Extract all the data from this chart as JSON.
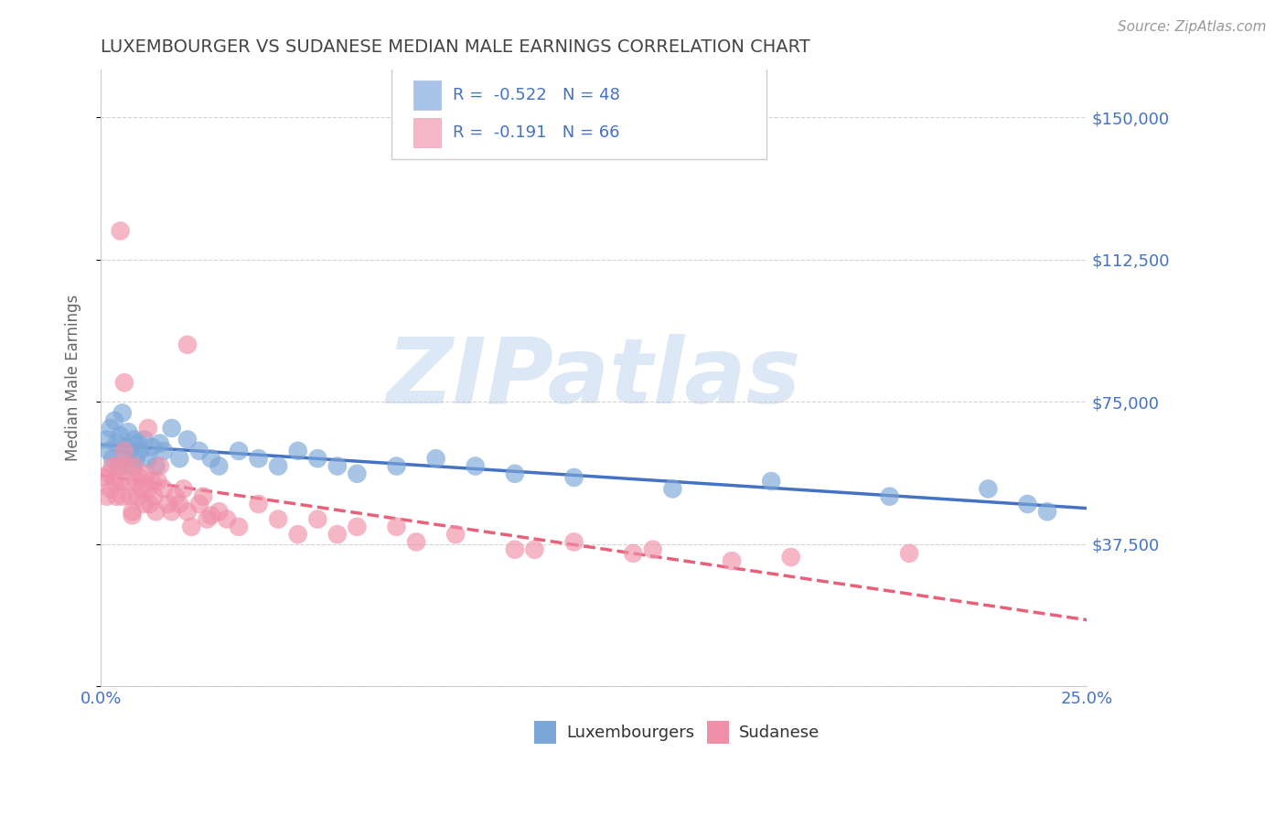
{
  "title": "LUXEMBOURGER VS SUDANESE MEDIAN MALE EARNINGS CORRELATION CHART",
  "source_text": "Source: ZipAtlas.com",
  "ylabel": "Median Male Earnings",
  "xlim": [
    0.0,
    25.0
  ],
  "ylim": [
    0,
    162500
  ],
  "yticks": [
    0,
    37500,
    75000,
    112500,
    150000
  ],
  "ytick_labels": [
    "",
    "$37,500",
    "$75,000",
    "$112,500",
    "$150,000"
  ],
  "background_color": "#ffffff",
  "grid_color": "#c8c8c8",
  "title_color": "#444444",
  "axis_label_color": "#4472c4",
  "watermark_text": "ZIPatlas",
  "watermark_color": "#dce8f5",
  "legend_r_label1": "R =  -0.522   N = 48",
  "legend_r_label2": "R =  -0.191   N = 66",
  "legend_sq_color1": "#a8c4e8",
  "legend_sq_color2": "#f4b8c8",
  "legend_text_color": "#4472c4",
  "scatter_color1": "#7ba7d8",
  "scatter_color2": "#f090a8",
  "line_color1": "#4472c4",
  "line_color2": "#e8607a",
  "lux_x": [
    0.15,
    0.2,
    0.25,
    0.3,
    0.35,
    0.4,
    0.45,
    0.5,
    0.55,
    0.6,
    0.65,
    0.7,
    0.75,
    0.8,
    0.85,
    0.9,
    0.95,
    1.0,
    1.1,
    1.2,
    1.3,
    1.4,
    1.5,
    1.6,
    1.8,
    2.0,
    2.2,
    2.5,
    2.8,
    3.0,
    3.5,
    4.0,
    4.5,
    5.0,
    5.5,
    6.0,
    6.5,
    7.5,
    8.5,
    9.5,
    10.5,
    12.0,
    14.5,
    17.0,
    20.0,
    22.5,
    23.5,
    24.0
  ],
  "lux_y": [
    65000,
    62000,
    68000,
    60000,
    70000,
    64000,
    58000,
    66000,
    72000,
    60000,
    63000,
    67000,
    62000,
    58000,
    65000,
    60000,
    64000,
    62000,
    65000,
    60000,
    63000,
    58000,
    64000,
    62000,
    68000,
    60000,
    65000,
    62000,
    60000,
    58000,
    62000,
    60000,
    58000,
    62000,
    60000,
    58000,
    56000,
    58000,
    60000,
    58000,
    56000,
    55000,
    52000,
    54000,
    50000,
    52000,
    48000,
    46000
  ],
  "sud_x": [
    0.1,
    0.15,
    0.2,
    0.25,
    0.3,
    0.35,
    0.4,
    0.45,
    0.5,
    0.55,
    0.6,
    0.65,
    0.7,
    0.75,
    0.8,
    0.85,
    0.9,
    0.95,
    1.0,
    1.05,
    1.1,
    1.15,
    1.2,
    1.25,
    1.3,
    1.35,
    1.4,
    1.45,
    1.5,
    1.6,
    1.7,
    1.8,
    1.9,
    2.0,
    2.1,
    2.2,
    2.3,
    2.5,
    2.7,
    3.0,
    3.5,
    4.0,
    4.5,
    5.0,
    5.5,
    6.0,
    7.5,
    9.0,
    10.5,
    12.0,
    14.0,
    17.5,
    20.5,
    2.8,
    3.2,
    6.5,
    8.0,
    11.0,
    13.5,
    16.0,
    0.6,
    1.2,
    2.2,
    0.8,
    2.6,
    0.5
  ],
  "sud_y": [
    55000,
    50000,
    56000,
    52000,
    58000,
    54000,
    50000,
    58000,
    54000,
    50000,
    62000,
    58000,
    54000,
    50000,
    46000,
    58000,
    54000,
    50000,
    55000,
    52000,
    48000,
    56000,
    52000,
    48000,
    54000,
    50000,
    46000,
    54000,
    58000,
    52000,
    48000,
    46000,
    50000,
    48000,
    52000,
    46000,
    42000,
    48000,
    44000,
    46000,
    42000,
    48000,
    44000,
    40000,
    44000,
    40000,
    42000,
    40000,
    36000,
    38000,
    36000,
    34000,
    35000,
    45000,
    44000,
    42000,
    38000,
    36000,
    35000,
    33000,
    80000,
    68000,
    90000,
    45000,
    50000,
    120000
  ]
}
